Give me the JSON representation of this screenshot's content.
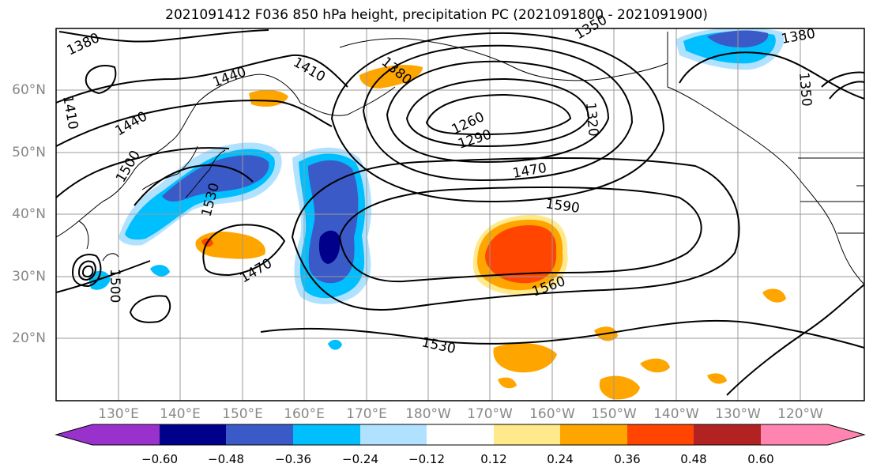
{
  "title": "2021091412 F036 850 hPa height, precipitation PC (2021091800 - 2021091900)",
  "latitude_labels": [
    "60°N",
    "50°N",
    "40°N",
    "30°N",
    "20°N"
  ],
  "longitude_labels": [
    "130°E",
    "140°E",
    "150°E",
    "160°E",
    "170°E",
    "180°W",
    "170°W",
    "160°W",
    "150°W",
    "140°W",
    "130°W",
    "120°W"
  ],
  "contour_labels": [
    "1380",
    "1380",
    "1380",
    "1410",
    "1410",
    "1440",
    "1440",
    "1500",
    "1530",
    "1470",
    "1260",
    "1290",
    "1320",
    "1350",
    "1350",
    "1470",
    "1590",
    "1560",
    "1530",
    "1500"
  ],
  "colorbar": {
    "tick_labels": [
      "−0.60",
      "−0.48",
      "−0.36",
      "−0.24",
      "−0.12",
      "0.12",
      "0.24",
      "0.36",
      "0.48",
      "0.60"
    ],
    "colors": [
      "#9932cc",
      "#00008b",
      "#3a5bc7",
      "#00bfff",
      "#b0e2ff",
      "#ffffff",
      "#ffe98a",
      "#ffa500",
      "#ff4500",
      "#b22222",
      "#ff85b0"
    ]
  },
  "colors": {
    "ocean": "#ffffff",
    "coast": "#000000",
    "contour": "#000000",
    "grid": "#999999",
    "axis_text": "#888888"
  }
}
